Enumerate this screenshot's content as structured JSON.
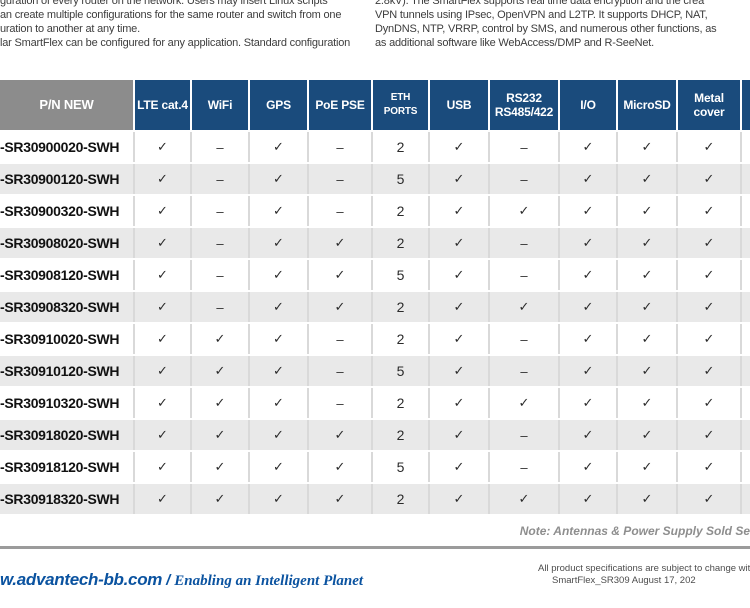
{
  "intro": {
    "left_text": "guration of every router on the network. Users may insert Linux scripts\nan create multiple configurations for the same router and switch from one\nuration to another at any time.\nlar SmartFlex can be configured for any application. Standard configuration",
    "right_text": "2.8kV). The SmartFlex supports real time data encryption and the crea\nVPN tunnels using IPsec, OpenVPN and L2TP. It supports DHCP, NAT,\nDynDNS, NTP, VRRP, control by SMS, and numerous other functions, as\nas additional software like WebAccess/DMP and R-SeeNet."
  },
  "table": {
    "columns": [
      "P/N NEW",
      "LTE cat.4",
      "WiFi",
      "GPS",
      "PoE PSE",
      "ETH PORTS",
      "USB",
      "RS232\nRS485/422",
      "I/O",
      "MicroSD",
      "Metal\ncover",
      ""
    ],
    "rows": [
      {
        "pn": "-SR30900020-SWH",
        "values": [
          "✓",
          "–",
          "✓",
          "–",
          "2",
          "✓",
          "–",
          "✓",
          "✓",
          "✓"
        ]
      },
      {
        "pn": "-SR30900120-SWH",
        "values": [
          "✓",
          "–",
          "✓",
          "–",
          "5",
          "✓",
          "–",
          "✓",
          "✓",
          "✓"
        ]
      },
      {
        "pn": "-SR30900320-SWH",
        "values": [
          "✓",
          "–",
          "✓",
          "–",
          "2",
          "✓",
          "✓",
          "✓",
          "✓",
          "✓"
        ]
      },
      {
        "pn": "-SR30908020-SWH",
        "values": [
          "✓",
          "–",
          "✓",
          "✓",
          "2",
          "✓",
          "–",
          "✓",
          "✓",
          "✓"
        ]
      },
      {
        "pn": "-SR30908120-SWH",
        "values": [
          "✓",
          "–",
          "✓",
          "✓",
          "5",
          "✓",
          "–",
          "✓",
          "✓",
          "✓"
        ]
      },
      {
        "pn": "-SR30908320-SWH",
        "values": [
          "✓",
          "–",
          "✓",
          "✓",
          "2",
          "✓",
          "✓",
          "✓",
          "✓",
          "✓"
        ]
      },
      {
        "pn": "-SR30910020-SWH",
        "values": [
          "✓",
          "✓",
          "✓",
          "–",
          "2",
          "✓",
          "–",
          "✓",
          "✓",
          "✓"
        ]
      },
      {
        "pn": "-SR30910120-SWH",
        "values": [
          "✓",
          "✓",
          "✓",
          "–",
          "5",
          "✓",
          "–",
          "✓",
          "✓",
          "✓"
        ]
      },
      {
        "pn": "-SR30910320-SWH",
        "values": [
          "✓",
          "✓",
          "✓",
          "–",
          "2",
          "✓",
          "✓",
          "✓",
          "✓",
          "✓"
        ]
      },
      {
        "pn": "-SR30918020-SWH",
        "values": [
          "✓",
          "✓",
          "✓",
          "✓",
          "2",
          "✓",
          "–",
          "✓",
          "✓",
          "✓"
        ]
      },
      {
        "pn": "-SR30918120-SWH",
        "values": [
          "✓",
          "✓",
          "✓",
          "✓",
          "5",
          "✓",
          "–",
          "✓",
          "✓",
          "✓"
        ]
      },
      {
        "pn": "-SR30918320-SWH",
        "values": [
          "✓",
          "✓",
          "✓",
          "✓",
          "2",
          "✓",
          "✓",
          "✓",
          "✓",
          "✓"
        ]
      }
    ]
  },
  "note": "Note: Antennas & Power Supply Sold Se",
  "footer": {
    "website": "w.advantech-bb.com",
    "separator": "/",
    "slogan": "Enabling an Intelligent Planet",
    "disclaimer_line1": "All product specifications are subject to change with",
    "disclaimer_line2": "SmartFlex_SR309 August 17, 202"
  },
  "colors": {
    "header_blue": "#1a4b7c",
    "header_gray": "#8c8c8c",
    "row_alt_gray": "#e9e9e9",
    "footer_blue": "#0b53a0"
  }
}
